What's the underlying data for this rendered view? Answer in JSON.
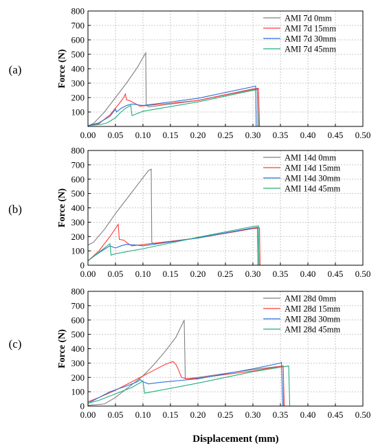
{
  "figure": {
    "x_label": "Displacement (mm)"
  },
  "chart_data": [
    {
      "type": "line",
      "panel_label": "(a)",
      "ylabel": "Force (N)",
      "xlabel": "",
      "xlim": [
        0,
        0.5
      ],
      "ylim": [
        0,
        800
      ],
      "x_ticks": [
        0.0,
        0.05,
        0.1,
        0.15,
        0.2,
        0.25,
        0.3,
        0.35,
        0.4,
        0.45,
        0.5
      ],
      "x_tick_labels": [
        "0.00",
        "0.05",
        "0.10",
        "0.15",
        "0.20",
        "0.25",
        "0.30",
        "0.35",
        "0.40",
        "0.45",
        "0.50"
      ],
      "y_ticks": [
        100,
        200,
        300,
        400,
        500,
        600,
        700,
        800
      ],
      "y_tick_labels": [
        "100",
        "200",
        "300",
        "400",
        "500",
        "600",
        "700",
        "800"
      ],
      "grid": true,
      "legend_position": "top-right",
      "series": [
        {
          "name": "AMI 7d 0mm",
          "color": "#7f7f7f",
          "points": [
            [
              0,
              5
            ],
            [
              0.01,
              20
            ],
            [
              0.03,
              100
            ],
            [
              0.05,
              200
            ],
            [
              0.07,
              300
            ],
            [
              0.09,
              410
            ],
            [
              0.105,
              510
            ],
            [
              0.106,
              150
            ],
            [
              0.11,
              135
            ],
            [
              0.2,
              180
            ],
            [
              0.3,
              255
            ],
            [
              0.31,
              260
            ],
            [
              0.311,
              0
            ]
          ]
        },
        {
          "name": "AMI 7d 15mm",
          "color": "#ff3b3b",
          "points": [
            [
              0,
              5
            ],
            [
              0.02,
              20
            ],
            [
              0.04,
              80
            ],
            [
              0.055,
              150
            ],
            [
              0.065,
              200
            ],
            [
              0.068,
              225
            ],
            [
              0.07,
              185
            ],
            [
              0.075,
              180
            ],
            [
              0.085,
              160
            ],
            [
              0.095,
              140
            ],
            [
              0.2,
              180
            ],
            [
              0.3,
              260
            ],
            [
              0.31,
              265
            ],
            [
              0.312,
              0
            ]
          ]
        },
        {
          "name": "AMI 7d 30mm",
          "color": "#2a6fd6",
          "points": [
            [
              0,
              5
            ],
            [
              0.02,
              25
            ],
            [
              0.04,
              70
            ],
            [
              0.05,
              120
            ],
            [
              0.052,
              100
            ],
            [
              0.06,
              125
            ],
            [
              0.07,
              145
            ],
            [
              0.08,
              155
            ],
            [
              0.09,
              150
            ],
            [
              0.1,
              145
            ],
            [
              0.2,
              195
            ],
            [
              0.3,
              275
            ],
            [
              0.305,
              280
            ],
            [
              0.306,
              0
            ]
          ]
        },
        {
          "name": "AMI 7d 45mm",
          "color": "#1fae7a",
          "points": [
            [
              0,
              5
            ],
            [
              0.025,
              15
            ],
            [
              0.035,
              25
            ],
            [
              0.05,
              60
            ],
            [
              0.06,
              100
            ],
            [
              0.07,
              130
            ],
            [
              0.078,
              145
            ],
            [
              0.08,
              75
            ],
            [
              0.09,
              90
            ],
            [
              0.1,
              105
            ],
            [
              0.2,
              170
            ],
            [
              0.3,
              250
            ],
            [
              0.308,
              255
            ],
            [
              0.309,
              0
            ]
          ]
        }
      ]
    },
    {
      "type": "line",
      "panel_label": "(b)",
      "ylabel": "Force (N)",
      "xlabel": "",
      "xlim": [
        0,
        0.5
      ],
      "ylim": [
        0,
        800
      ],
      "x_ticks": [
        0.0,
        0.05,
        0.1,
        0.15,
        0.2,
        0.25,
        0.3,
        0.35,
        0.4,
        0.45,
        0.5
      ],
      "x_tick_labels": [
        "0.00",
        "0.05",
        "0.10",
        "0.15",
        "0.20",
        "0.25",
        "0.30",
        "0.35",
        "0.40",
        "0.45",
        "0.50"
      ],
      "y_ticks": [
        0,
        100,
        200,
        300,
        400,
        500,
        600,
        700,
        800
      ],
      "y_tick_labels": [
        "0",
        "100",
        "200",
        "300",
        "400",
        "500",
        "600",
        "700",
        "800"
      ],
      "grid": true,
      "legend_position": "top-right",
      "series": [
        {
          "name": "AMI 14d 0mm",
          "color": "#7f7f7f",
          "points": [
            [
              0,
              140
            ],
            [
              0.01,
              160
            ],
            [
              0.03,
              250
            ],
            [
              0.05,
              360
            ],
            [
              0.07,
              460
            ],
            [
              0.09,
              560
            ],
            [
              0.11,
              660
            ],
            [
              0.115,
              670
            ],
            [
              0.116,
              160
            ],
            [
              0.12,
              150
            ],
            [
              0.2,
              190
            ],
            [
              0.3,
              255
            ],
            [
              0.308,
              260
            ],
            [
              0.309,
              0
            ]
          ]
        },
        {
          "name": "AMI 14d 15mm",
          "color": "#ff3b3b",
          "points": [
            [
              0,
              30
            ],
            [
              0.02,
              100
            ],
            [
              0.04,
              200
            ],
            [
              0.055,
              285
            ],
            [
              0.057,
              180
            ],
            [
              0.065,
              175
            ],
            [
              0.075,
              145
            ],
            [
              0.08,
              135
            ],
            [
              0.2,
              190
            ],
            [
              0.3,
              255
            ],
            [
              0.312,
              260
            ],
            [
              0.313,
              0
            ]
          ]
        },
        {
          "name": "AMI 14d 30mm",
          "color": "#2a6fd6",
          "points": [
            [
              0,
              30
            ],
            [
              0.01,
              60
            ],
            [
              0.025,
              100
            ],
            [
              0.04,
              135
            ],
            [
              0.05,
              120
            ],
            [
              0.06,
              135
            ],
            [
              0.07,
              145
            ],
            [
              0.09,
              140
            ],
            [
              0.1,
              135
            ],
            [
              0.2,
              190
            ],
            [
              0.3,
              260
            ],
            [
              0.31,
              265
            ],
            [
              0.311,
              0
            ]
          ]
        },
        {
          "name": "AMI 14d 45mm",
          "color": "#1fae7a",
          "points": [
            [
              0,
              30
            ],
            [
              0.02,
              90
            ],
            [
              0.035,
              135
            ],
            [
              0.04,
              150
            ],
            [
              0.042,
              70
            ],
            [
              0.05,
              80
            ],
            [
              0.1,
              115
            ],
            [
              0.2,
              195
            ],
            [
              0.3,
              270
            ],
            [
              0.31,
              275
            ],
            [
              0.311,
              0
            ]
          ]
        }
      ]
    },
    {
      "type": "line",
      "panel_label": "(c)",
      "ylabel": "Force (N)",
      "xlabel": "Displacement (mm)",
      "xlim": [
        0,
        0.5
      ],
      "ylim": [
        0,
        800
      ],
      "x_ticks": [
        0.0,
        0.05,
        0.1,
        0.15,
        0.2,
        0.25,
        0.3,
        0.35,
        0.4,
        0.45,
        0.5
      ],
      "x_tick_labels": [
        "0.00",
        "0.05",
        "0.10",
        "0.15",
        "0.20",
        "0.25",
        "0.30",
        "0.35",
        "0.40",
        "0.45",
        "0.50"
      ],
      "y_ticks": [
        0,
        100,
        200,
        300,
        400,
        500,
        600,
        700,
        800
      ],
      "y_tick_labels": [
        "0",
        "100",
        "200",
        "300",
        "400",
        "500",
        "600",
        "700",
        "800"
      ],
      "grid": true,
      "legend_position": "top-right",
      "series": [
        {
          "name": "AMI 28d 0mm",
          "color": "#7f7f7f",
          "points": [
            [
              0,
              5
            ],
            [
              0.03,
              15
            ],
            [
              0.05,
              60
            ],
            [
              0.07,
              120
            ],
            [
              0.1,
              210
            ],
            [
              0.12,
              290
            ],
            [
              0.14,
              380
            ],
            [
              0.16,
              480
            ],
            [
              0.175,
              600
            ],
            [
              0.177,
              190
            ],
            [
              0.2,
              200
            ],
            [
              0.3,
              255
            ],
            [
              0.355,
              280
            ],
            [
              0.356,
              0
            ]
          ]
        },
        {
          "name": "AMI 28d 15mm",
          "color": "#ff3b3b",
          "points": [
            [
              0,
              30
            ],
            [
              0.02,
              60
            ],
            [
              0.05,
              110
            ],
            [
              0.08,
              170
            ],
            [
              0.1,
              210
            ],
            [
              0.12,
              250
            ],
            [
              0.14,
              290
            ],
            [
              0.15,
              305
            ],
            [
              0.155,
              310
            ],
            [
              0.16,
              290
            ],
            [
              0.165,
              250
            ],
            [
              0.17,
              200
            ],
            [
              0.18,
              190
            ],
            [
              0.2,
              195
            ],
            [
              0.3,
              245
            ],
            [
              0.355,
              280
            ],
            [
              0.357,
              0
            ]
          ]
        },
        {
          "name": "AMI 28d 30mm",
          "color": "#2a6fd6",
          "points": [
            [
              0,
              20
            ],
            [
              0.02,
              60
            ],
            [
              0.04,
              100
            ],
            [
              0.07,
              140
            ],
            [
              0.09,
              170
            ],
            [
              0.095,
              185
            ],
            [
              0.1,
              170
            ],
            [
              0.11,
              155
            ],
            [
              0.13,
              165
            ],
            [
              0.2,
              190
            ],
            [
              0.3,
              260
            ],
            [
              0.35,
              300
            ],
            [
              0.352,
              305
            ],
            [
              0.354,
              0
            ]
          ]
        },
        {
          "name": "AMI 28d 45mm",
          "color": "#1fae7a",
          "points": [
            [
              0,
              20
            ],
            [
              0.02,
              40
            ],
            [
              0.04,
              70
            ],
            [
              0.06,
              100
            ],
            [
              0.08,
              130
            ],
            [
              0.1,
              175
            ],
            [
              0.103,
              90
            ],
            [
              0.11,
              95
            ],
            [
              0.2,
              160
            ],
            [
              0.3,
              240
            ],
            [
              0.365,
              280
            ],
            [
              0.367,
              0
            ]
          ]
        }
      ]
    }
  ]
}
